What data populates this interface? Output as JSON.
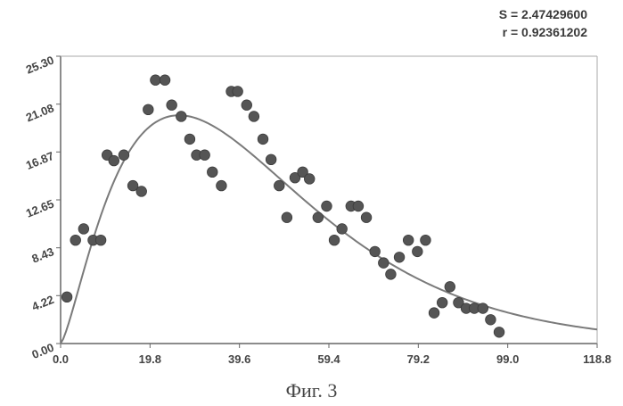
{
  "stats": {
    "s_label": "S = 2.47429600",
    "r_label": "r = 0.92361202"
  },
  "caption": "Фиг. 3",
  "colors": {
    "points": "#555555",
    "curve": "#7a7a7a",
    "axis": "#666666"
  },
  "chart_data": {
    "type": "scatter",
    "title": "",
    "xlabel": "",
    "ylabel": "",
    "xlim": [
      0,
      118.8
    ],
    "ylim": [
      0,
      25.3
    ],
    "x_ticks": [
      "0.0",
      "19.8",
      "39.6",
      "59.4",
      "79.2",
      "99.0",
      "118.8"
    ],
    "y_ticks": [
      "0.00",
      "4.22",
      "8.43",
      "12.65",
      "16.87",
      "21.08",
      "25.30"
    ],
    "x_tick_values": [
      0,
      19.8,
      39.6,
      59.4,
      79.2,
      99.0,
      118.8
    ],
    "y_tick_values": [
      0,
      4.22,
      8.43,
      12.65,
      16.87,
      21.08,
      25.3
    ],
    "grid": false,
    "points": [
      [
        1.4,
        4.1
      ],
      [
        3.3,
        9.1
      ],
      [
        5.1,
        10.1
      ],
      [
        7.2,
        9.1
      ],
      [
        8.9,
        9.1
      ],
      [
        10.3,
        16.6
      ],
      [
        11.8,
        16.1
      ],
      [
        14.0,
        16.6
      ],
      [
        16.0,
        13.9
      ],
      [
        17.9,
        13.4
      ],
      [
        19.4,
        20.6
      ],
      [
        21.0,
        23.2
      ],
      [
        23.1,
        23.2
      ],
      [
        24.6,
        21.0
      ],
      [
        26.7,
        20.0
      ],
      [
        28.6,
        18.0
      ],
      [
        30.1,
        16.6
      ],
      [
        31.9,
        16.6
      ],
      [
        33.6,
        15.1
      ],
      [
        35.6,
        13.9
      ],
      [
        37.8,
        22.2
      ],
      [
        39.2,
        22.2
      ],
      [
        41.2,
        21.0
      ],
      [
        42.8,
        20.0
      ],
      [
        44.8,
        18.0
      ],
      [
        46.6,
        16.2
      ],
      [
        48.4,
        13.9
      ],
      [
        50.1,
        11.1
      ],
      [
        51.9,
        14.6
      ],
      [
        53.6,
        15.1
      ],
      [
        55.1,
        14.5
      ],
      [
        57.0,
        11.1
      ],
      [
        58.9,
        12.1
      ],
      [
        60.6,
        9.1
      ],
      [
        62.3,
        10.1
      ],
      [
        64.3,
        12.1
      ],
      [
        65.9,
        12.1
      ],
      [
        67.7,
        11.1
      ],
      [
        69.6,
        8.1
      ],
      [
        71.5,
        7.1
      ],
      [
        73.1,
        6.1
      ],
      [
        75.0,
        7.6
      ],
      [
        77.0,
        9.1
      ],
      [
        79.0,
        8.1
      ],
      [
        80.8,
        9.1
      ],
      [
        82.7,
        2.7
      ],
      [
        84.5,
        3.6
      ],
      [
        86.2,
        5.0
      ],
      [
        88.1,
        3.6
      ],
      [
        89.8,
        3.1
      ],
      [
        91.6,
        3.1
      ],
      [
        93.5,
        3.1
      ],
      [
        95.2,
        2.1
      ],
      [
        97.1,
        1.0
      ]
    ]
  }
}
